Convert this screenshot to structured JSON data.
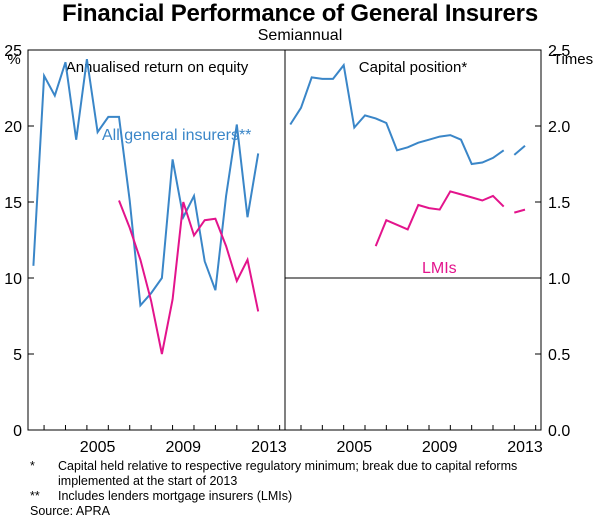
{
  "title": "Financial Performance of General Insurers",
  "subtitle": "Semiannual",
  "colors": {
    "blue": "#3a86c8",
    "magenta": "#e3148c"
  },
  "chart_data": [
    {
      "type": "line",
      "panel_title": "Annualised return on equity",
      "ylabel": "%",
      "ylim": [
        0,
        25
      ],
      "yticks": [
        "0",
        "5",
        "10",
        "15",
        "20",
        "25"
      ],
      "xlim": [
        2001.75,
        2013.75
      ],
      "xticks": [
        "2005",
        "2009",
        "2013"
      ],
      "series": [
        {
          "name": "All general insurers**",
          "color": "blue",
          "x": [
            2002.0,
            2002.5,
            2003.0,
            2003.5,
            2004.0,
            2004.5,
            2005.0,
            2005.5,
            2006.0,
            2006.5,
            2007.0,
            2007.5,
            2008.0,
            2008.5,
            2009.0,
            2009.5,
            2010.0,
            2010.5,
            2011.0,
            2011.5,
            2012.0,
            2012.5,
            2013.0,
            2013.5
          ],
          "y": [
            10.8,
            23.3,
            22.0,
            24.2,
            19.1,
            24.4,
            19.6,
            20.6,
            20.6,
            15.1,
            8.2,
            9.0,
            10.0,
            17.8,
            14.0,
            15.4,
            11.1,
            9.2,
            15.4,
            20.1,
            14.0,
            18.2,
            null,
            null
          ]
        },
        {
          "name": "LMIs",
          "color": "magenta",
          "x": [
            2006.0,
            2006.5,
            2007.0,
            2007.5,
            2008.0,
            2008.5,
            2009.0,
            2009.5,
            2010.0,
            2010.5,
            2011.0,
            2011.5,
            2012.0,
            2012.5
          ],
          "y": [
            15.1,
            13.3,
            11.2,
            8.5,
            5.0,
            8.6,
            15.0,
            12.8,
            13.8,
            13.9,
            12.1,
            9.8,
            11.2,
            7.8
          ]
        }
      ]
    },
    {
      "type": "line",
      "panel_title": "Capital position*",
      "ylabel": "Times",
      "ylim": [
        0.0,
        2.5
      ],
      "yticks": [
        "0.0",
        "0.5",
        "1.0",
        "1.5",
        "2.0",
        "2.5"
      ],
      "reference_line": 1.0,
      "xlim": [
        2001.75,
        2013.75
      ],
      "xticks": [
        "2005",
        "2009",
        "2013"
      ],
      "series": [
        {
          "name": "All general insurers**",
          "color": "blue",
          "segments": [
            {
              "x": [
                2002.0,
                2002.5,
                2003.0,
                2003.5,
                2004.0,
                2004.5,
                2005.0,
                2005.5,
                2006.0,
                2006.5,
                2007.0,
                2007.5,
                2008.0,
                2008.5,
                2009.0,
                2009.5,
                2010.0,
                2010.5,
                2011.0,
                2011.5,
                2012.0
              ],
              "y": [
                2.01,
                2.12,
                2.32,
                2.31,
                2.31,
                2.4,
                1.99,
                2.07,
                2.05,
                2.02,
                1.84,
                1.86,
                1.89,
                1.91,
                1.93,
                1.94,
                1.91,
                1.75,
                1.76,
                1.79,
                1.84
              ]
            },
            {
              "x": [
                2012.5,
                2013.0
              ],
              "y": [
                1.81,
                1.87
              ]
            }
          ]
        },
        {
          "name": "LMIs",
          "color": "magenta",
          "segments": [
            {
              "x": [
                2006.0,
                2006.5,
                2007.0,
                2007.5,
                2008.0,
                2008.5,
                2009.0,
                2009.5,
                2010.0,
                2010.5,
                2011.0,
                2011.5,
                2012.0
              ],
              "y": [
                1.21,
                1.38,
                1.35,
                1.32,
                1.48,
                1.46,
                1.45,
                1.57,
                1.55,
                1.53,
                1.51,
                1.54,
                1.47
              ]
            },
            {
              "x": [
                2012.5,
                2013.0
              ],
              "y": [
                1.43,
                1.45
              ]
            }
          ]
        }
      ]
    }
  ],
  "labels": {
    "all_insurers": "All general insurers**",
    "lmis": "LMIs"
  },
  "notes": [
    {
      "mark": "*",
      "text": "Capital held relative to respective regulatory minimum; break due to capital reforms implemented at the start of 2013"
    },
    {
      "mark": "**",
      "text": "Includes lenders mortgage insurers (LMIs)"
    }
  ],
  "source": "Source: APRA"
}
